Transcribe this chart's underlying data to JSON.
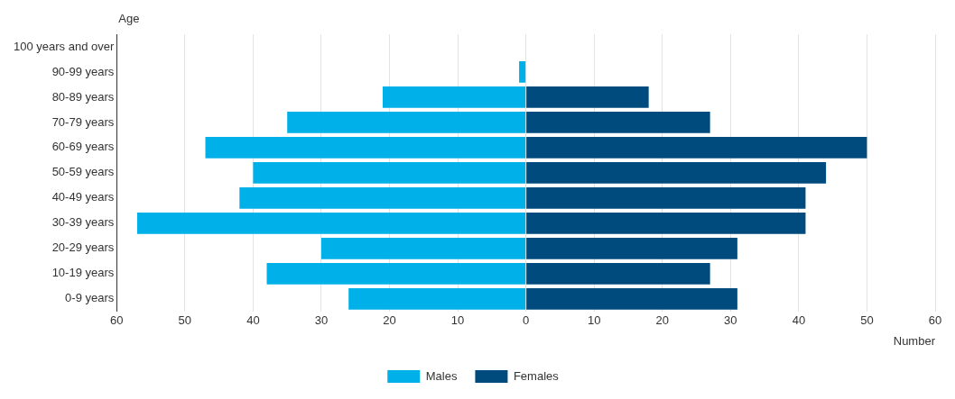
{
  "chart_data": {
    "type": "bar",
    "orientation": "horizontal",
    "stacked": true,
    "xlabel": "Number",
    "ylabel": "Age",
    "categories": [
      "100 years and over",
      "90-99 years",
      "80-89 years",
      "70-79 years",
      "60-69 years",
      "50-59 years",
      "40-49 years",
      "30-39 years",
      "20-29 years",
      "10-19 years",
      "0-9 years"
    ],
    "series": [
      {
        "name": "Males",
        "color": "#00b0e8",
        "values": [
          0,
          -1,
          -21,
          -35,
          -47,
          -40,
          -42,
          -57,
          -30,
          -38,
          -26
        ]
      },
      {
        "name": "Females",
        "color": "#004b7d",
        "values": [
          0,
          0,
          18,
          27,
          50,
          44,
          41,
          41,
          31,
          27,
          31
        ]
      }
    ],
    "xlim": [
      -60,
      60
    ],
    "xticks": [
      {
        "value": -60,
        "label": "60"
      },
      {
        "value": -50,
        "label": "50"
      },
      {
        "value": -40,
        "label": "40"
      },
      {
        "value": -30,
        "label": "30"
      },
      {
        "value": -20,
        "label": "20"
      },
      {
        "value": -10,
        "label": "10"
      },
      0,
      10,
      20,
      30,
      40,
      50,
      60
    ],
    "grid": "x",
    "legend": "bottom"
  }
}
